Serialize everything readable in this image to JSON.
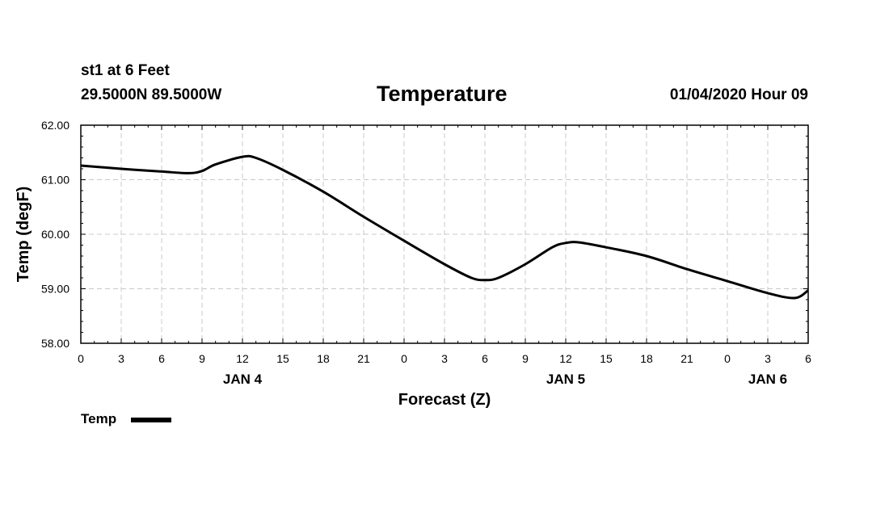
{
  "header": {
    "station": "st1 at 6 Feet",
    "latlon": "29.5000N 89.5000W",
    "datetime": "01/04/2020 Hour 09"
  },
  "chart_data": {
    "type": "line",
    "title": "Temperature",
    "xlabel": "Forecast (Z)",
    "ylabel": "Temp (degF)",
    "xlim": [
      0,
      54
    ],
    "ylim": [
      58.0,
      62.0
    ],
    "yticks": [
      58.0,
      59.0,
      60.0,
      61.0,
      62.0
    ],
    "ytick_labels": [
      "58.00",
      "59.00",
      "60.00",
      "61.00",
      "62.00"
    ],
    "xticks": [
      0,
      3,
      6,
      9,
      12,
      15,
      18,
      21,
      24,
      27,
      30,
      33,
      36,
      39,
      42,
      45,
      48,
      51,
      54
    ],
    "xtick_labels": [
      "0",
      "3",
      "6",
      "9",
      "12",
      "15",
      "18",
      "21",
      "0",
      "3",
      "6",
      "9",
      "12",
      "15",
      "18",
      "21",
      "0",
      "3",
      "6"
    ],
    "day_labels": [
      {
        "x": 12,
        "label": "JAN 4"
      },
      {
        "x": 36,
        "label": "JAN 5"
      },
      {
        "x": 51,
        "label": "JAN 6"
      }
    ],
    "grid": true,
    "legend": "bottom-left",
    "series": [
      {
        "name": "Temp",
        "color": "#000000",
        "x": [
          0,
          3,
          6,
          8,
          9,
          10,
          12,
          13,
          15,
          18,
          21,
          24,
          27,
          29,
          30,
          31,
          33,
          35,
          36,
          37,
          39,
          42,
          45,
          48,
          51,
          53,
          54
        ],
        "y": [
          61.26,
          61.2,
          61.15,
          61.12,
          61.16,
          61.28,
          61.42,
          61.4,
          61.18,
          60.78,
          60.32,
          59.88,
          59.45,
          59.2,
          59.16,
          59.2,
          59.45,
          59.76,
          59.84,
          59.85,
          59.76,
          59.6,
          59.36,
          59.14,
          58.92,
          58.83,
          58.97
        ]
      }
    ]
  }
}
